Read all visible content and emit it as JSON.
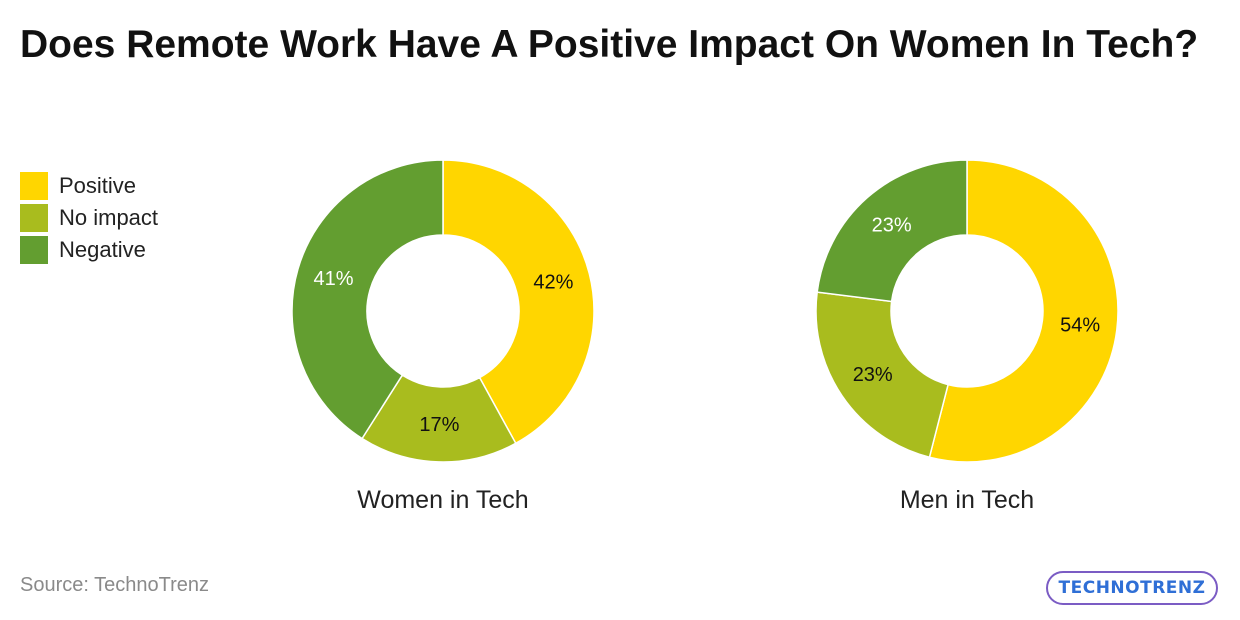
{
  "title": "Does Remote Work Have A Positive Impact On Women In Tech?",
  "legend": [
    {
      "label": "Positive",
      "color": "#FFD600"
    },
    {
      "label": "No impact",
      "color": "#A9BC1E"
    },
    {
      "label": "Negative",
      "color": "#639E30"
    }
  ],
  "chart_data": [
    {
      "type": "pie",
      "variant": "donut",
      "title": "Women in Tech",
      "categories": [
        "Positive",
        "No impact",
        "Negative"
      ],
      "values": [
        42,
        17,
        41
      ],
      "labels": [
        "42%",
        "17%",
        "41%"
      ],
      "colors": [
        "#FFD600",
        "#A9BC1E",
        "#639E30"
      ],
      "legend_position": "top-left"
    },
    {
      "type": "pie",
      "variant": "donut",
      "title": "Men in Tech",
      "categories": [
        "Positive",
        "No impact",
        "Negative"
      ],
      "values": [
        54,
        23,
        23
      ],
      "labels": [
        "54%",
        "23%",
        "23%"
      ],
      "colors": [
        "#FFD600",
        "#A9BC1E",
        "#639E30"
      ],
      "legend_position": "top-left"
    }
  ],
  "footer": {
    "source": "Source: TechnoTrenz",
    "logo_text": "TECHNOTRENZ"
  }
}
